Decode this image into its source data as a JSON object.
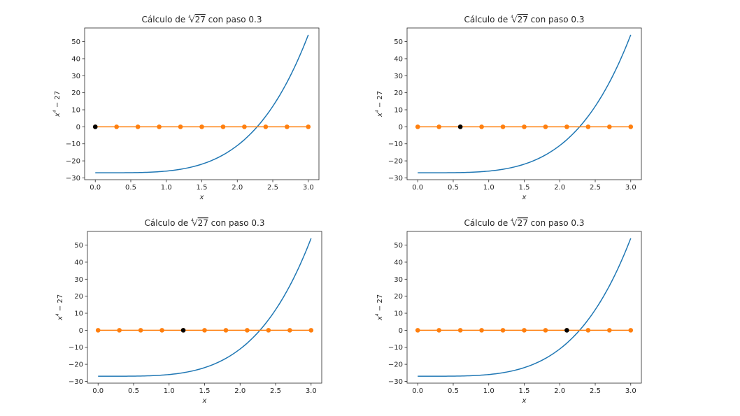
{
  "chart_data": [
    {
      "type": "line",
      "title": "Cálculo de ∜27 con paso 0.3",
      "title_parts": {
        "prefix": "Cálculo de ",
        "root_index": "4",
        "radicand": "27",
        "suffix": " con paso 0.3"
      },
      "xlabel": "x",
      "ylabel": "x⁴ − 27",
      "ylabel_parts": {
        "base": "x",
        "exponent": "4",
        "rest": " − 27"
      },
      "xlim": [
        -0.15,
        3.15
      ],
      "ylim": [
        -31.05,
        58.05
      ],
      "xticks": [
        0.0,
        0.5,
        1.0,
        1.5,
        2.0,
        2.5,
        3.0
      ],
      "xtick_labels": [
        "0.0",
        "0.5",
        "1.0",
        "1.5",
        "2.0",
        "2.5",
        "3.0"
      ],
      "yticks": [
        -30,
        -20,
        -10,
        0,
        10,
        20,
        30,
        40,
        50
      ],
      "ytick_labels": [
        "−30",
        "−20",
        "−10",
        "0",
        "10",
        "20",
        "30",
        "40",
        "50"
      ],
      "grid": false,
      "series": [
        {
          "kind": "curve",
          "function": "x^4 - 27",
          "domain": [
            0,
            3
          ],
          "color": "#1f77b4"
        },
        {
          "kind": "points",
          "x": [
            0.0,
            0.3,
            0.6,
            0.9,
            1.2,
            1.5,
            1.8,
            2.1,
            2.4,
            2.7,
            3.0
          ],
          "y": [
            0,
            0,
            0,
            0,
            0,
            0,
            0,
            0,
            0,
            0,
            0
          ],
          "color": "#ff7f0e"
        },
        {
          "kind": "highlight",
          "x": [
            0.0
          ],
          "y": [
            0
          ],
          "color": "#000000"
        }
      ]
    },
    {
      "type": "line",
      "title": "Cálculo de ∜27 con paso 0.3",
      "title_parts": {
        "prefix": "Cálculo de ",
        "root_index": "4",
        "radicand": "27",
        "suffix": " con paso 0.3"
      },
      "xlabel": "x",
      "ylabel": "x⁴ − 27",
      "ylabel_parts": {
        "base": "x",
        "exponent": "4",
        "rest": " − 27"
      },
      "xlim": [
        -0.15,
        3.15
      ],
      "ylim": [
        -31.05,
        58.05
      ],
      "xticks": [
        0.0,
        0.5,
        1.0,
        1.5,
        2.0,
        2.5,
        3.0
      ],
      "xtick_labels": [
        "0.0",
        "0.5",
        "1.0",
        "1.5",
        "2.0",
        "2.5",
        "3.0"
      ],
      "yticks": [
        -30,
        -20,
        -10,
        0,
        10,
        20,
        30,
        40,
        50
      ],
      "ytick_labels": [
        "−30",
        "−20",
        "−10",
        "0",
        "10",
        "20",
        "30",
        "40",
        "50"
      ],
      "grid": false,
      "series": [
        {
          "kind": "curve",
          "function": "x^4 - 27",
          "domain": [
            0,
            3
          ],
          "color": "#1f77b4"
        },
        {
          "kind": "points",
          "x": [
            0.0,
            0.3,
            0.6,
            0.9,
            1.2,
            1.5,
            1.8,
            2.1,
            2.4,
            2.7,
            3.0
          ],
          "y": [
            0,
            0,
            0,
            0,
            0,
            0,
            0,
            0,
            0,
            0,
            0
          ],
          "color": "#ff7f0e"
        },
        {
          "kind": "highlight",
          "x": [
            0.6
          ],
          "y": [
            0
          ],
          "color": "#000000"
        }
      ]
    },
    {
      "type": "line",
      "title": "Cálculo de ∜27 con paso 0.3",
      "title_parts": {
        "prefix": "Cálculo de ",
        "root_index": "4",
        "radicand": "27",
        "suffix": " con paso 0.3"
      },
      "xlabel": "x",
      "ylabel": "x⁴ − 27",
      "ylabel_parts": {
        "base": "x",
        "exponent": "4",
        "rest": " − 27"
      },
      "xlim": [
        -0.15,
        3.15
      ],
      "ylim": [
        -31.05,
        58.05
      ],
      "xticks": [
        0.0,
        0.5,
        1.0,
        1.5,
        2.0,
        2.5,
        3.0
      ],
      "xtick_labels": [
        "0.0",
        "0.5",
        "1.0",
        "1.5",
        "2.0",
        "2.5",
        "3.0"
      ],
      "yticks": [
        -30,
        -20,
        -10,
        0,
        10,
        20,
        30,
        40,
        50
      ],
      "ytick_labels": [
        "−30",
        "−20",
        "−10",
        "0",
        "10",
        "20",
        "30",
        "40",
        "50"
      ],
      "grid": false,
      "series": [
        {
          "kind": "curve",
          "function": "x^4 - 27",
          "domain": [
            0,
            3
          ],
          "color": "#1f77b4"
        },
        {
          "kind": "points",
          "x": [
            0.0,
            0.3,
            0.6,
            0.9,
            1.2,
            1.5,
            1.8,
            2.1,
            2.4,
            2.7,
            3.0
          ],
          "y": [
            0,
            0,
            0,
            0,
            0,
            0,
            0,
            0,
            0,
            0,
            0
          ],
          "color": "#ff7f0e"
        },
        {
          "kind": "highlight",
          "x": [
            1.2
          ],
          "y": [
            0
          ],
          "color": "#000000"
        }
      ]
    },
    {
      "type": "line",
      "title": "Cálculo de ∜27 con paso 0.3",
      "title_parts": {
        "prefix": "Cálculo de ",
        "root_index": "4",
        "radicand": "27",
        "suffix": " con paso 0.3"
      },
      "xlabel": "x",
      "ylabel": "x⁴ − 27",
      "ylabel_parts": {
        "base": "x",
        "exponent": "4",
        "rest": " − 27"
      },
      "xlim": [
        -0.15,
        3.15
      ],
      "ylim": [
        -31.05,
        58.05
      ],
      "xticks": [
        0.0,
        0.5,
        1.0,
        1.5,
        2.0,
        2.5,
        3.0
      ],
      "xtick_labels": [
        "0.0",
        "0.5",
        "1.0",
        "1.5",
        "2.0",
        "2.5",
        "3.0"
      ],
      "yticks": [
        -30,
        -20,
        -10,
        0,
        10,
        20,
        30,
        40,
        50
      ],
      "ytick_labels": [
        "−30",
        "−20",
        "−10",
        "0",
        "10",
        "20",
        "30",
        "40",
        "50"
      ],
      "grid": false,
      "series": [
        {
          "kind": "curve",
          "function": "x^4 - 27",
          "domain": [
            0,
            3
          ],
          "color": "#1f77b4"
        },
        {
          "kind": "points",
          "x": [
            0.0,
            0.3,
            0.6,
            0.9,
            1.2,
            1.5,
            1.8,
            2.1,
            2.4,
            2.7,
            3.0
          ],
          "y": [
            0,
            0,
            0,
            0,
            0,
            0,
            0,
            0,
            0,
            0,
            0
          ],
          "color": "#ff7f0e"
        },
        {
          "kind": "highlight",
          "x": [
            2.1
          ],
          "y": [
            0
          ],
          "color": "#000000"
        }
      ]
    }
  ]
}
